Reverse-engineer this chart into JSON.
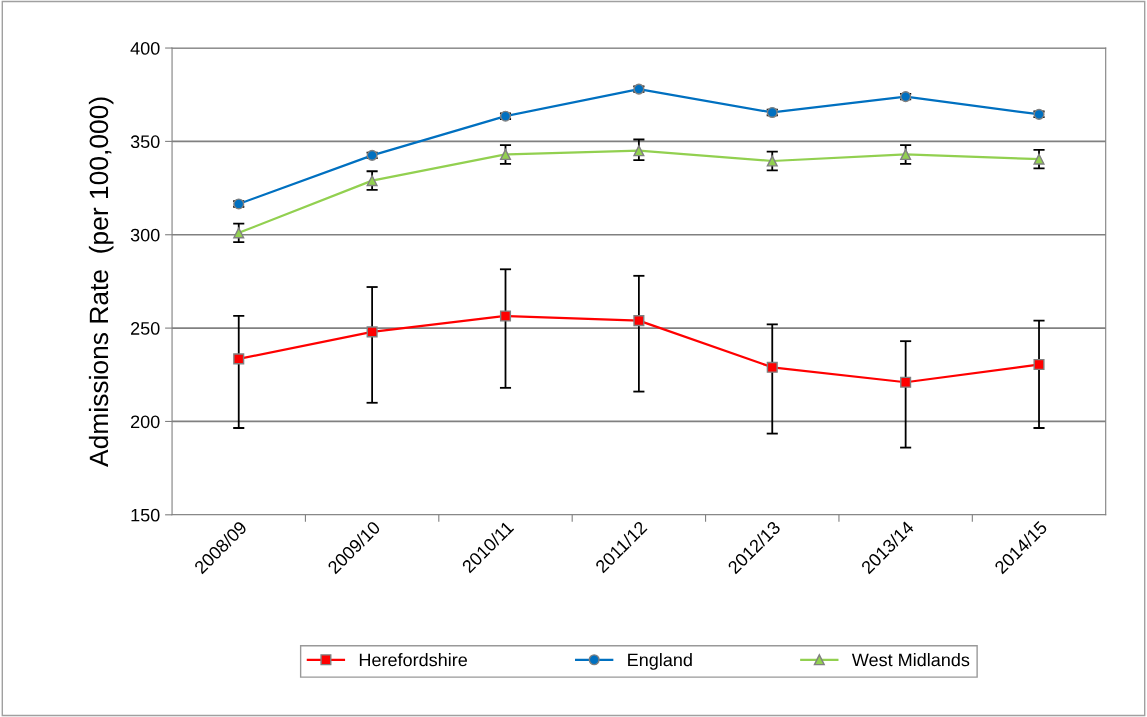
{
  "chart_data": {
    "type": "line",
    "ylabel": "Admissions Rate  (per 100,000)",
    "categories": [
      "2008/09",
      "2009/10",
      "2010/11",
      "2011/12",
      "2012/13",
      "2013/14",
      "2014/15"
    ],
    "series": [
      {
        "name": "Herefordshire",
        "color": "#ff0000",
        "marker": "square",
        "values": [
          233.5,
          248,
          256.5,
          254,
          229,
          221,
          230.5
        ],
        "errors": [
          [
            196.5,
            256.5
          ],
          [
            210,
            272
          ],
          [
            218,
            281.5
          ],
          [
            216,
            278
          ],
          [
            193.5,
            252
          ],
          [
            186,
            243
          ],
          [
            196.5,
            254
          ]
        ]
      },
      {
        "name": "England",
        "color": "#0070c0",
        "marker": "circle",
        "values": [
          316.5,
          342.5,
          363.5,
          378,
          365.5,
          374,
          364.5
        ],
        "errors": [
          [
            315,
            318
          ],
          [
            341,
            344
          ],
          [
            362,
            365
          ],
          [
            376.5,
            379.5
          ],
          [
            364,
            367
          ],
          [
            372.5,
            375.5
          ],
          [
            363,
            366
          ]
        ]
      },
      {
        "name": "West Midlands",
        "color": "#92d050",
        "marker": "triangle",
        "values": [
          301,
          329,
          343,
          345,
          339.5,
          343,
          340.5
        ],
        "errors": [
          [
            296,
            306
          ],
          [
            324,
            334
          ],
          [
            338,
            348
          ],
          [
            340,
            351
          ],
          [
            334.5,
            344.5
          ],
          [
            338,
            348
          ],
          [
            335.5,
            345.5
          ]
        ]
      }
    ],
    "ylim": [
      150,
      400
    ],
    "yticks": [
      150,
      200,
      250,
      300,
      350,
      400
    ],
    "grid": "y",
    "legend": "bottom"
  }
}
